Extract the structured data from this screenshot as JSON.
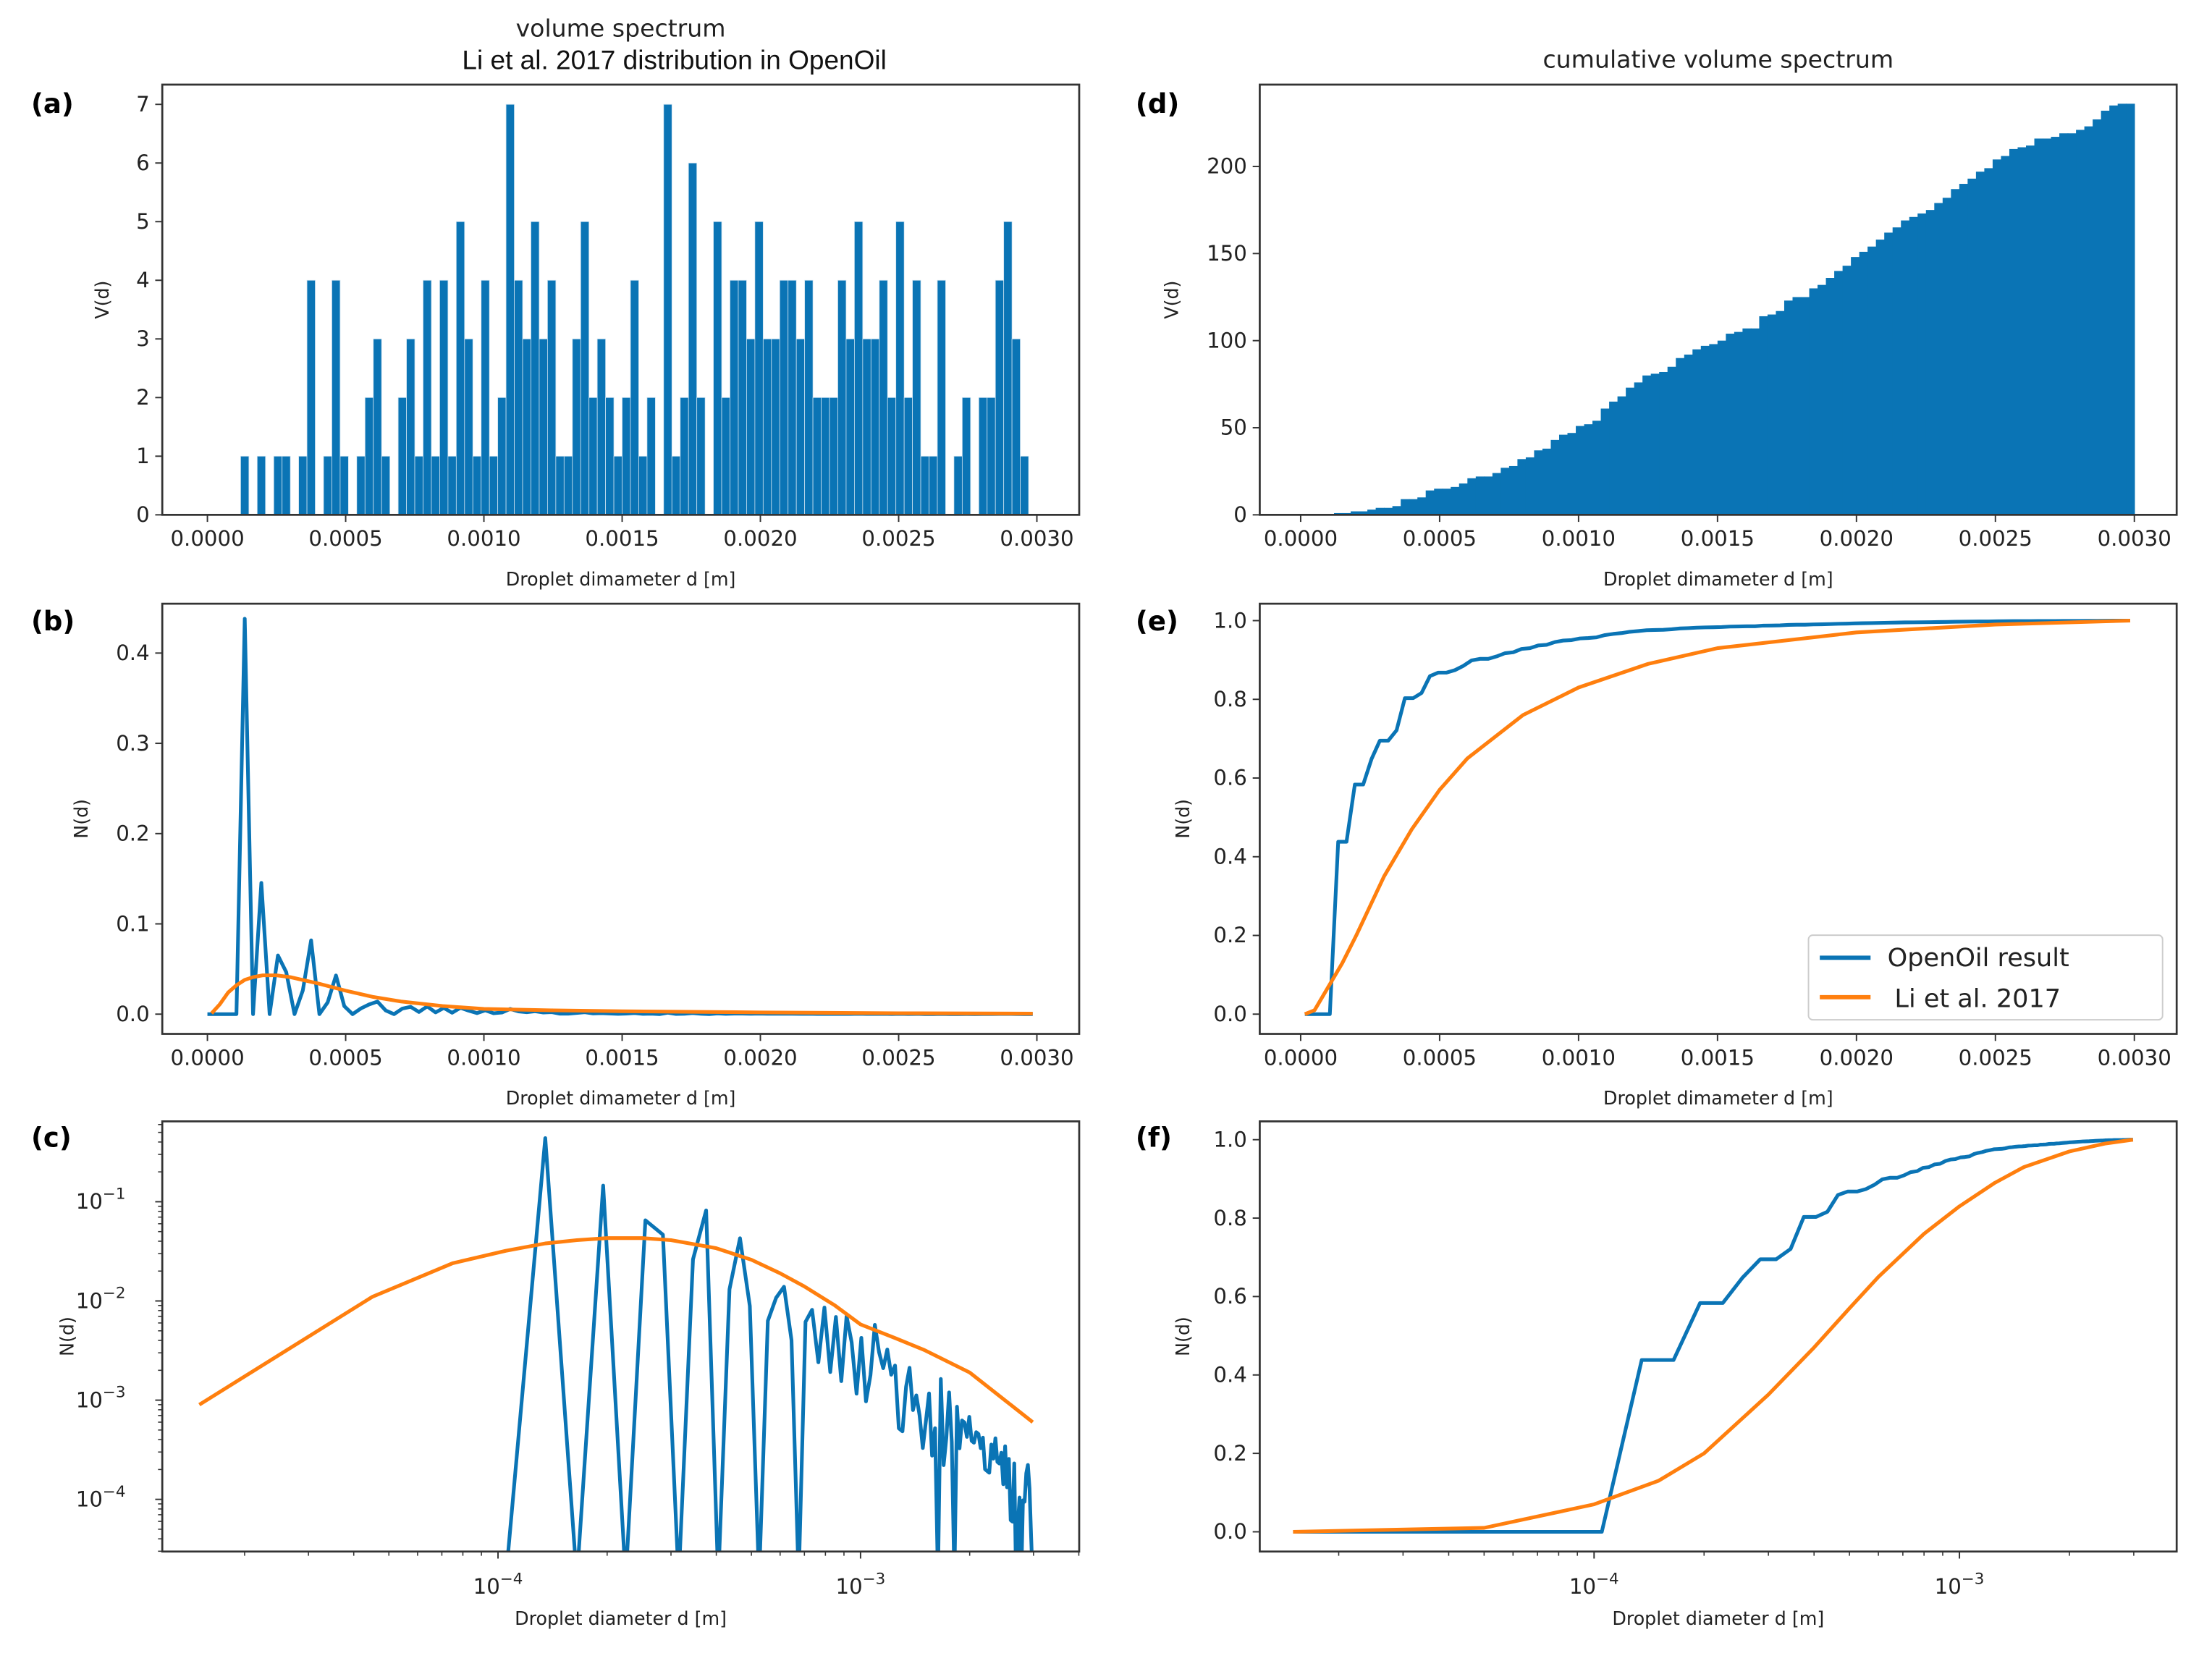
{
  "colors": {
    "openoil": "#0a74b5",
    "li2017": "#ff7f0e",
    "axis": "#333333"
  },
  "titles": {
    "left_top": "volume spectrum",
    "left_sub": "Li et al. 2017 distribution in OpenOil",
    "right_top": "cumulative volume spectrum"
  },
  "legend": {
    "openoil": "OpenOil result",
    "li2017": "Li et al. 2017"
  },
  "chart_data": {
    "type": "mixed",
    "bins": {
      "start": 0.0,
      "width": 3e-05,
      "count": 100
    },
    "volume_counts": [
      0,
      0,
      0,
      0,
      1,
      0,
      1,
      0,
      1,
      1,
      0,
      1,
      4,
      0,
      1,
      4,
      1,
      0,
      1,
      2,
      3,
      1,
      0,
      2,
      3,
      1,
      4,
      1,
      4,
      1,
      5,
      3,
      1,
      4,
      1,
      2,
      7,
      4,
      3,
      5,
      3,
      4,
      1,
      1,
      3,
      5,
      2,
      3,
      2,
      1,
      2,
      4,
      1,
      2,
      0,
      7,
      1,
      2,
      6,
      2,
      0,
      5,
      2,
      4,
      4,
      3,
      5,
      3,
      3,
      4,
      4,
      3,
      4,
      2,
      2,
      2,
      4,
      3,
      5,
      3,
      3,
      4,
      2,
      5,
      2,
      4,
      1,
      1,
      4,
      0,
      1,
      2,
      0,
      2,
      2,
      4,
      5,
      3,
      1,
      0
    ],
    "li2017_number": {
      "d": [
        1.5e-05,
        4.5e-05,
        7.5e-05,
        0.000105,
        0.000135,
        0.000165,
        0.0002,
        0.00025,
        0.0003,
        0.0004,
        0.0005,
        0.0006,
        0.0007,
        0.00085,
        0.001,
        0.00125,
        0.0015,
        0.002,
        0.0025,
        0.002985
      ],
      "N": [
        0.0009,
        0.011,
        0.024,
        0.032,
        0.038,
        0.041,
        0.043,
        0.043,
        0.041,
        0.034,
        0.026,
        0.019,
        0.014,
        0.009,
        0.0058,
        0.0042,
        0.0032,
        0.0019,
        0.001,
        0.0006
      ]
    },
    "li2017_cumulative": {
      "d": [
        1.5e-05,
        5e-05,
        0.0001,
        0.00015,
        0.0002,
        0.0003,
        0.0004,
        0.0005,
        0.0006,
        0.0008,
        0.001,
        0.00125,
        0.0015,
        0.002,
        0.0025,
        0.002985
      ],
      "N": [
        0.0,
        0.01,
        0.07,
        0.13,
        0.2,
        0.35,
        0.47,
        0.57,
        0.65,
        0.76,
        0.83,
        0.89,
        0.93,
        0.97,
        0.99,
        1.0
      ]
    },
    "panels": [
      {
        "id": "a",
        "label": "(a)",
        "type": "bar",
        "series": "volume",
        "xlabel": "Droplet dimameter d [m]",
        "ylabel": "V(d)",
        "xlim": [
          0,
          0.003
        ],
        "ylim": [
          0,
          7
        ],
        "xticks": [
          {
            "v": 0,
            "label": "0.0000"
          },
          {
            "v": 0.0005,
            "label": "0.0005"
          },
          {
            "v": 0.001,
            "label": "0.0010"
          },
          {
            "v": 0.0015,
            "label": "0.0015"
          },
          {
            "v": 0.002,
            "label": "0.0020"
          },
          {
            "v": 0.0025,
            "label": "0.0025"
          },
          {
            "v": 0.003,
            "label": "0.0030"
          }
        ],
        "yticks": [
          {
            "v": 0,
            "label": "0"
          },
          {
            "v": 1,
            "label": "1"
          },
          {
            "v": 2,
            "label": "2"
          },
          {
            "v": 3,
            "label": "3"
          },
          {
            "v": 4,
            "label": "4"
          },
          {
            "v": 5,
            "label": "5"
          },
          {
            "v": 6,
            "label": "6"
          },
          {
            "v": 7,
            "label": "7"
          }
        ]
      },
      {
        "id": "d",
        "label": "(d)",
        "type": "bar",
        "series": "cumulative_volume",
        "xlabel": "Droplet dimameter d [m]",
        "ylabel": "V(d)",
        "xlim": [
          0,
          0.003
        ],
        "ylim": [
          0,
          200
        ],
        "xticks": [
          {
            "v": 0,
            "label": "0.0000"
          },
          {
            "v": 0.0005,
            "label": "0.0005"
          },
          {
            "v": 0.001,
            "label": "0.0010"
          },
          {
            "v": 0.0015,
            "label": "0.0015"
          },
          {
            "v": 0.002,
            "label": "0.0020"
          },
          {
            "v": 0.0025,
            "label": "0.0025"
          },
          {
            "v": 0.003,
            "label": "0.0030"
          }
        ],
        "yticks": [
          {
            "v": 0,
            "label": "0"
          },
          {
            "v": 50,
            "label": "50"
          },
          {
            "v": 100,
            "label": "100"
          },
          {
            "v": 150,
            "label": "150"
          },
          {
            "v": 200,
            "label": "200"
          }
        ]
      },
      {
        "id": "b",
        "label": "(b)",
        "type": "line",
        "series": "number",
        "xlabel": "Droplet dimameter d [m]",
        "ylabel": "N(d)",
        "xlim": [
          0,
          0.003
        ],
        "ylim": [
          0,
          0.4
        ],
        "xticks": [
          {
            "v": 0,
            "label": "0.0000"
          },
          {
            "v": 0.0005,
            "label": "0.0005"
          },
          {
            "v": 0.001,
            "label": "0.0010"
          },
          {
            "v": 0.0015,
            "label": "0.0015"
          },
          {
            "v": 0.002,
            "label": "0.0020"
          },
          {
            "v": 0.0025,
            "label": "0.0025"
          },
          {
            "v": 0.003,
            "label": "0.0030"
          }
        ],
        "yticks": [
          {
            "v": 0,
            "label": "0.0"
          },
          {
            "v": 0.1,
            "label": "0.1"
          },
          {
            "v": 0.2,
            "label": "0.2"
          },
          {
            "v": 0.3,
            "label": "0.3"
          },
          {
            "v": 0.4,
            "label": "0.4"
          }
        ]
      },
      {
        "id": "e",
        "label": "(e)",
        "type": "line",
        "series": "cumulative_number",
        "xlabel": "Droplet dimameter d [m]",
        "ylabel": "N(d)",
        "xlim": [
          0,
          0.003
        ],
        "ylim": [
          0,
          1
        ],
        "legend": "bottom-right",
        "xticks": [
          {
            "v": 0,
            "label": "0.0000"
          },
          {
            "v": 0.0005,
            "label": "0.0005"
          },
          {
            "v": 0.001,
            "label": "0.0010"
          },
          {
            "v": 0.0015,
            "label": "0.0015"
          },
          {
            "v": 0.002,
            "label": "0.0020"
          },
          {
            "v": 0.0025,
            "label": "0.0025"
          },
          {
            "v": 0.003,
            "label": "0.0030"
          }
        ],
        "yticks": [
          {
            "v": 0,
            "label": "0.0"
          },
          {
            "v": 0.2,
            "label": "0.2"
          },
          {
            "v": 0.4,
            "label": "0.4"
          },
          {
            "v": 0.6,
            "label": "0.6"
          },
          {
            "v": 0.8,
            "label": "0.8"
          },
          {
            "v": 1,
            "label": "1.0"
          }
        ]
      },
      {
        "id": "c",
        "label": "(c)",
        "type": "line",
        "series": "number",
        "xscale": "log",
        "yscale": "log",
        "xlabel": "Droplet diameter d [m]",
        "ylabel": "N(d)",
        "xticks": [
          {
            "v": 0.0001,
            "base": "10",
            "exp": "−4"
          },
          {
            "v": 0.001,
            "base": "10",
            "exp": "−3"
          }
        ],
        "yticks": [
          {
            "v": 0.0001,
            "base": "10",
            "exp": "−4"
          },
          {
            "v": 0.001,
            "base": "10",
            "exp": "−3"
          },
          {
            "v": 0.01,
            "base": "10",
            "exp": "−2"
          },
          {
            "v": 0.1,
            "base": "10",
            "exp": "−1"
          }
        ]
      },
      {
        "id": "f",
        "label": "(f)",
        "type": "line",
        "series": "cumulative_number",
        "xscale": "log",
        "xlabel": "Droplet diameter d [m]",
        "ylabel": "N(d)",
        "ylim": [
          0,
          1
        ],
        "xticks": [
          {
            "v": 0.0001,
            "base": "10",
            "exp": "−4"
          },
          {
            "v": 0.001,
            "base": "10",
            "exp": "−3"
          }
        ],
        "yticks": [
          {
            "v": 0,
            "label": "0.0"
          },
          {
            "v": 0.2,
            "label": "0.2"
          },
          {
            "v": 0.4,
            "label": "0.4"
          },
          {
            "v": 0.6,
            "label": "0.6"
          },
          {
            "v": 0.8,
            "label": "0.8"
          },
          {
            "v": 1,
            "label": "1.0"
          }
        ]
      }
    ]
  }
}
